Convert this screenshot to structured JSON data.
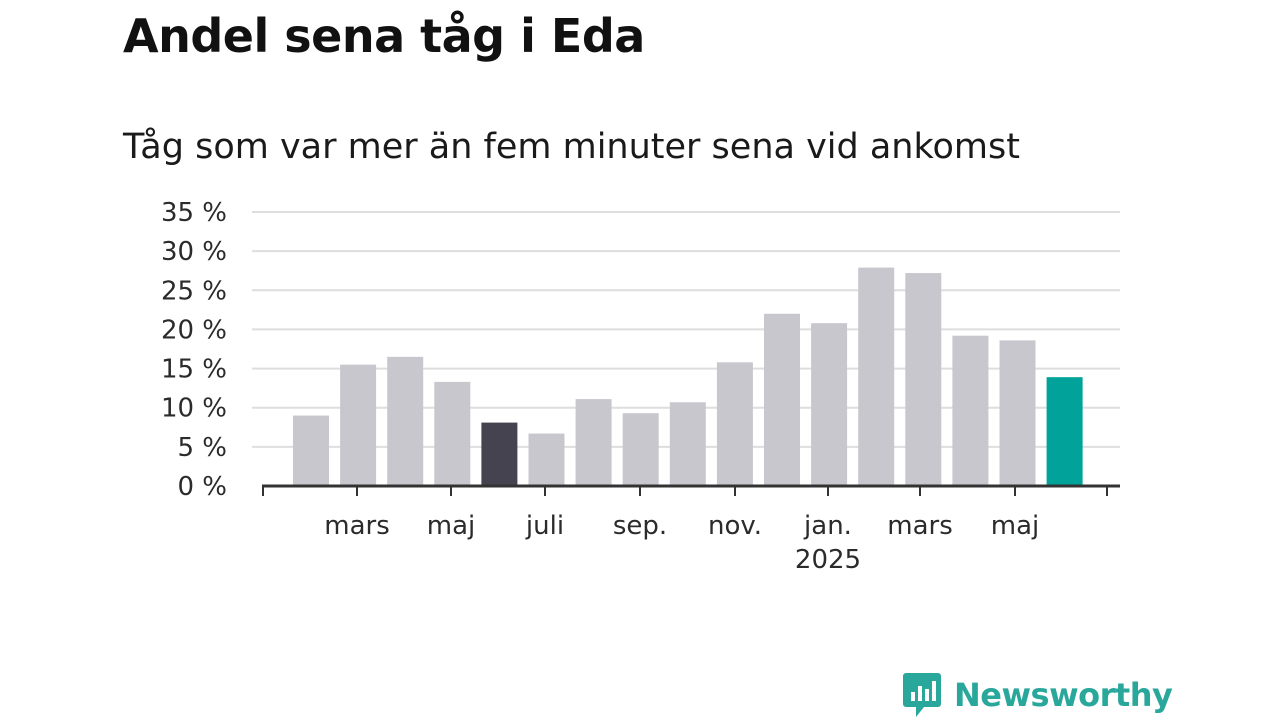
{
  "header": {
    "title": "Andel sena tåg i Eda",
    "subtitle": "Tåg som var mer än fem minuter sena vid ankomst"
  },
  "chart_data": {
    "type": "bar",
    "title": "Andel sena tåg i Eda",
    "subtitle": "Tåg som var mer än fem minuter sena vid ankomst",
    "xlabel": "",
    "ylabel": "",
    "ylim": [
      0,
      35
    ],
    "y_ticks": [
      "0 %",
      "5 %",
      "10 %",
      "15 %",
      "20 %",
      "25 %",
      "30 %",
      "35 %"
    ],
    "x_tick_labels": [
      {
        "label": "mars",
        "sub": ""
      },
      {
        "label": "maj",
        "sub": ""
      },
      {
        "label": "juli",
        "sub": ""
      },
      {
        "label": "sep.",
        "sub": ""
      },
      {
        "label": "nov.",
        "sub": ""
      },
      {
        "label": "jan.",
        "sub": "2025"
      },
      {
        "label": "mars",
        "sub": ""
      },
      {
        "label": "maj",
        "sub": ""
      }
    ],
    "categories": [
      "2024-02",
      "2024-03",
      "2024-04",
      "2024-05",
      "2024-06",
      "2024-07",
      "2024-08",
      "2024-09",
      "2024-10",
      "2024-11",
      "2024-12",
      "2025-01",
      "2025-02",
      "2025-03",
      "2025-04",
      "2025-05",
      "2025-06"
    ],
    "values": [
      9.0,
      15.5,
      16.5,
      13.3,
      8.1,
      6.7,
      11.1,
      9.3,
      10.7,
      15.8,
      22.0,
      20.8,
      27.9,
      27.2,
      19.2,
      18.6,
      13.9
    ],
    "highlight": {
      "2024-06": "dark",
      "2025-06": "accent"
    },
    "grid": true,
    "legend": "none",
    "colors": {
      "bar": "#c8c7ce",
      "dark": "#44434f",
      "accent": "#00a29a",
      "grid": "#dedede",
      "axis": "#333333"
    }
  },
  "brand": {
    "name": "Newsworthy",
    "icon": "newsworthy-logo-icon",
    "color": "#2aa79b"
  }
}
